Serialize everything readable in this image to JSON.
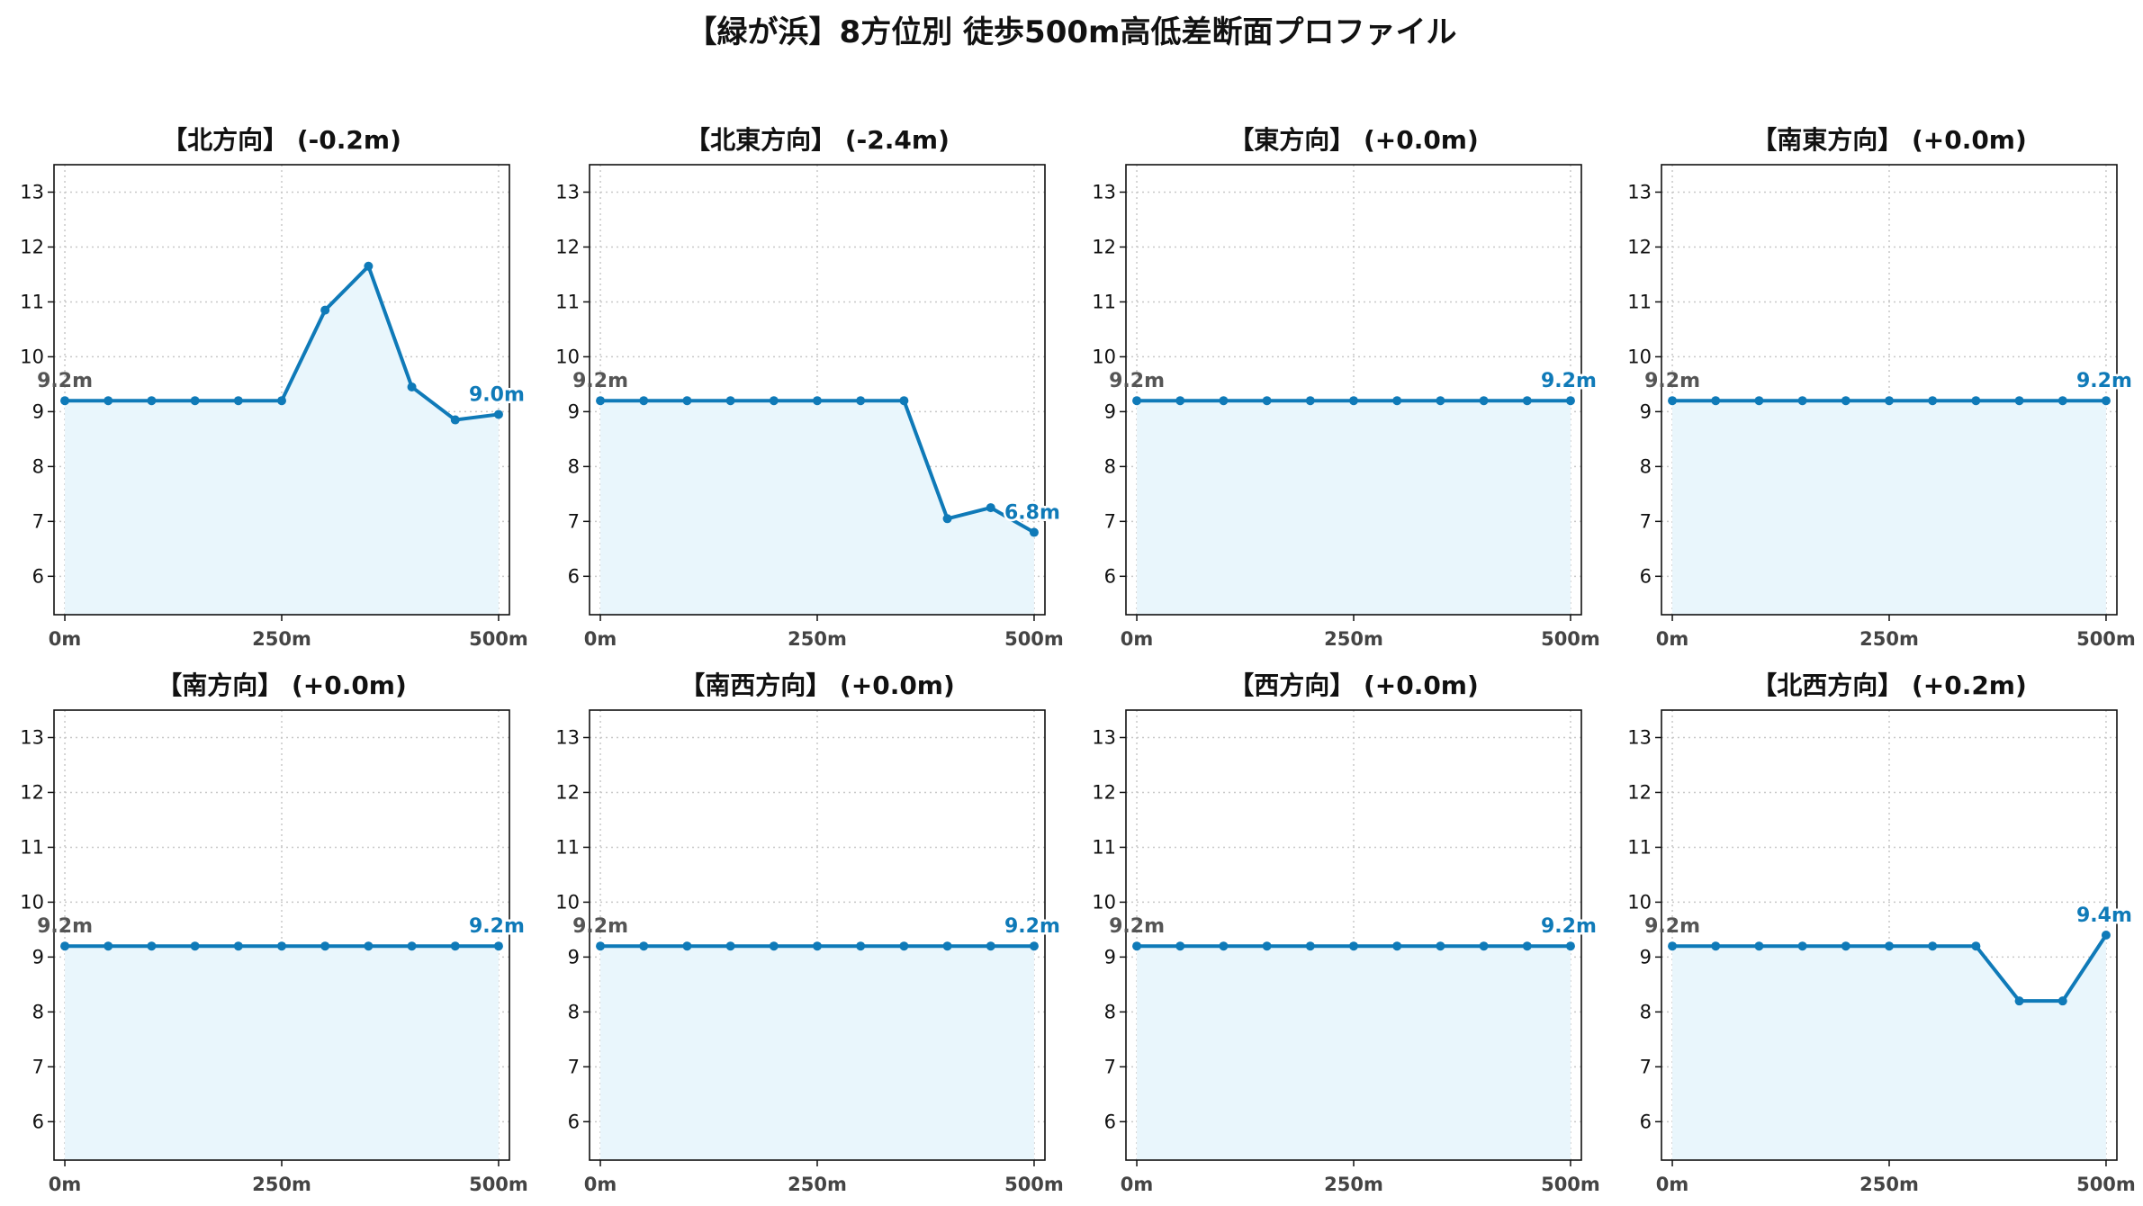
{
  "title": "【緑が浜】8方位別 徒歩500m高低差断面プロファイル",
  "colors": {
    "line": "#0f7ab8",
    "fill": "#e9f6fc",
    "grid": "#c8c8c8"
  },
  "chart_data": [
    {
      "type": "area",
      "title": "【北方向】 (-0.2m)",
      "x": [
        0,
        50,
        100,
        150,
        200,
        250,
        300,
        350,
        400,
        450,
        500
      ],
      "y": [
        9.2,
        9.2,
        9.2,
        9.2,
        9.2,
        9.2,
        10.85,
        11.65,
        9.45,
        8.85,
        8.95
      ],
      "xticks": [
        "0m",
        "250m",
        "500m"
      ],
      "yticks": [
        6,
        7,
        8,
        9,
        10,
        11,
        12,
        13
      ],
      "ylim": [
        5.3,
        13.5
      ],
      "start_label": "9.2m",
      "end_label": "9.0m",
      "grid": true
    },
    {
      "type": "area",
      "title": "【北東方向】 (-2.4m)",
      "x": [
        0,
        50,
        100,
        150,
        200,
        250,
        300,
        350,
        400,
        450,
        500
      ],
      "y": [
        9.2,
        9.2,
        9.2,
        9.2,
        9.2,
        9.2,
        9.2,
        9.2,
        7.05,
        7.25,
        6.8
      ],
      "xticks": [
        "0m",
        "250m",
        "500m"
      ],
      "yticks": [
        6,
        7,
        8,
        9,
        10,
        11,
        12,
        13
      ],
      "ylim": [
        5.3,
        13.5
      ],
      "start_label": "9.2m",
      "end_label": "6.8m",
      "grid": true
    },
    {
      "type": "area",
      "title": "【東方向】 (+0.0m)",
      "x": [
        0,
        50,
        100,
        150,
        200,
        250,
        300,
        350,
        400,
        450,
        500
      ],
      "y": [
        9.2,
        9.2,
        9.2,
        9.2,
        9.2,
        9.2,
        9.2,
        9.2,
        9.2,
        9.2,
        9.2
      ],
      "xticks": [
        "0m",
        "250m",
        "500m"
      ],
      "yticks": [
        6,
        7,
        8,
        9,
        10,
        11,
        12,
        13
      ],
      "ylim": [
        5.3,
        13.5
      ],
      "start_label": "9.2m",
      "end_label": "9.2m",
      "grid": true
    },
    {
      "type": "area",
      "title": "【南東方向】 (+0.0m)",
      "x": [
        0,
        50,
        100,
        150,
        200,
        250,
        300,
        350,
        400,
        450,
        500
      ],
      "y": [
        9.2,
        9.2,
        9.2,
        9.2,
        9.2,
        9.2,
        9.2,
        9.2,
        9.2,
        9.2,
        9.2
      ],
      "xticks": [
        "0m",
        "250m",
        "500m"
      ],
      "yticks": [
        6,
        7,
        8,
        9,
        10,
        11,
        12,
        13
      ],
      "ylim": [
        5.3,
        13.5
      ],
      "start_label": "9.2m",
      "end_label": "9.2m",
      "grid": true
    },
    {
      "type": "area",
      "title": "【南方向】 (+0.0m)",
      "x": [
        0,
        50,
        100,
        150,
        200,
        250,
        300,
        350,
        400,
        450,
        500
      ],
      "y": [
        9.2,
        9.2,
        9.2,
        9.2,
        9.2,
        9.2,
        9.2,
        9.2,
        9.2,
        9.2,
        9.2
      ],
      "xticks": [
        "0m",
        "250m",
        "500m"
      ],
      "yticks": [
        6,
        7,
        8,
        9,
        10,
        11,
        12,
        13
      ],
      "ylim": [
        5.3,
        13.5
      ],
      "start_label": "9.2m",
      "end_label": "9.2m",
      "grid": true
    },
    {
      "type": "area",
      "title": "【南西方向】 (+0.0m)",
      "x": [
        0,
        50,
        100,
        150,
        200,
        250,
        300,
        350,
        400,
        450,
        500
      ],
      "y": [
        9.2,
        9.2,
        9.2,
        9.2,
        9.2,
        9.2,
        9.2,
        9.2,
        9.2,
        9.2,
        9.2
      ],
      "xticks": [
        "0m",
        "250m",
        "500m"
      ],
      "yticks": [
        6,
        7,
        8,
        9,
        10,
        11,
        12,
        13
      ],
      "ylim": [
        5.3,
        13.5
      ],
      "start_label": "9.2m",
      "end_label": "9.2m",
      "grid": true
    },
    {
      "type": "area",
      "title": "【西方向】 (+0.0m)",
      "x": [
        0,
        50,
        100,
        150,
        200,
        250,
        300,
        350,
        400,
        450,
        500
      ],
      "y": [
        9.2,
        9.2,
        9.2,
        9.2,
        9.2,
        9.2,
        9.2,
        9.2,
        9.2,
        9.2,
        9.2
      ],
      "xticks": [
        "0m",
        "250m",
        "500m"
      ],
      "yticks": [
        6,
        7,
        8,
        9,
        10,
        11,
        12,
        13
      ],
      "ylim": [
        5.3,
        13.5
      ],
      "start_label": "9.2m",
      "end_label": "9.2m",
      "grid": true
    },
    {
      "type": "area",
      "title": "【北西方向】 (+0.2m)",
      "x": [
        0,
        50,
        100,
        150,
        200,
        250,
        300,
        350,
        400,
        450,
        500
      ],
      "y": [
        9.2,
        9.2,
        9.2,
        9.2,
        9.2,
        9.2,
        9.2,
        9.2,
        8.2,
        8.2,
        9.4
      ],
      "xticks": [
        "0m",
        "250m",
        "500m"
      ],
      "yticks": [
        6,
        7,
        8,
        9,
        10,
        11,
        12,
        13
      ],
      "ylim": [
        5.3,
        13.5
      ],
      "start_label": "9.2m",
      "end_label": "9.4m",
      "grid": true
    }
  ]
}
